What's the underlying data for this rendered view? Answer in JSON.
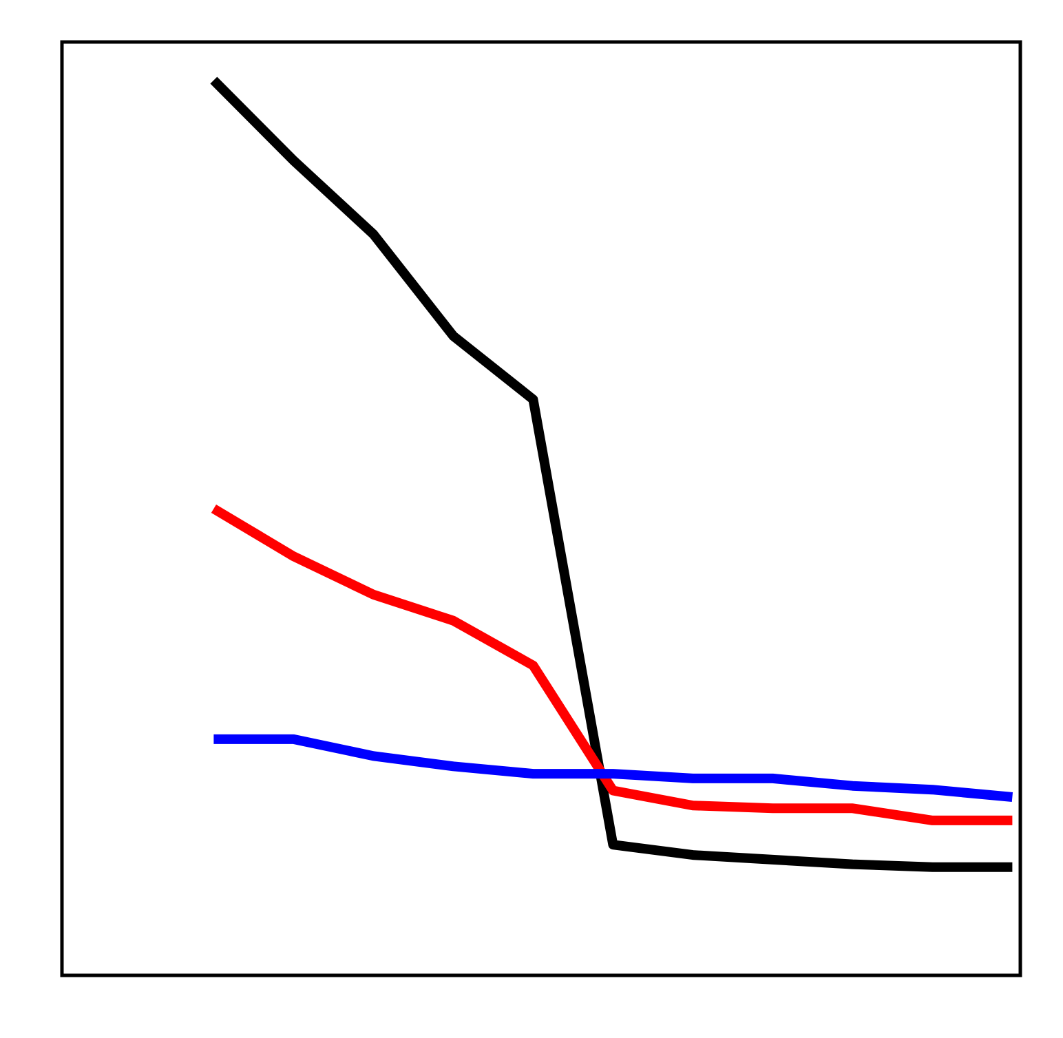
{
  "chart_data": {
    "type": "line",
    "x": [
      0,
      1,
      2,
      3,
      4,
      5,
      6,
      7,
      8,
      9,
      10
    ],
    "xlim": [
      -1.9,
      10.1
    ],
    "ylim": [
      0,
      100
    ],
    "grid": false,
    "series": [
      {
        "color": "#000000",
        "values": [
          95.9,
          87.3,
          79.4,
          68.5,
          61.7,
          14.0,
          12.9,
          12.4,
          11.9,
          11.6,
          11.6
        ]
      },
      {
        "color": "#ff0000",
        "values": [
          50.0,
          44.9,
          40.8,
          38.0,
          33.2,
          19.8,
          18.2,
          17.9,
          17.9,
          16.6,
          16.6
        ]
      },
      {
        "color": "#0000ff",
        "values": [
          25.3,
          25.3,
          23.5,
          22.4,
          21.6,
          21.6,
          21.1,
          21.1,
          20.3,
          19.9,
          19.1
        ]
      }
    ]
  }
}
